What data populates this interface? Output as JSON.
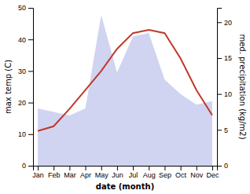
{
  "chart_data": {
    "type": "line",
    "categories": [
      "Jan",
      "Feb",
      "Mar",
      "Apr",
      "May",
      "Jun",
      "Jul",
      "Aug",
      "Sep",
      "Oct",
      "Nov",
      "Dec"
    ],
    "series": [
      {
        "type": "area",
        "axis": "y2",
        "color": "#b0b8e8",
        "values": [
          8,
          7.5,
          7,
          8,
          21,
          13,
          18,
          18.5,
          12,
          10,
          8.5,
          9
        ]
      },
      {
        "type": "line",
        "color": "#c0392b",
        "values": [
          11,
          12.5,
          18,
          24,
          30,
          37,
          42,
          43,
          42,
          34,
          24,
          16
        ]
      }
    ],
    "xlabel": "date (month)",
    "ylabel": "max temp (C)",
    "y2label": "med. precipitation (kg/m2)",
    "ylim": [
      0,
      50
    ],
    "yticks": [
      0,
      10,
      20,
      30,
      40,
      50
    ],
    "y2lim": [
      0,
      22
    ],
    "y2ticks": [
      0,
      5,
      10,
      15,
      20
    ],
    "grid": false
  }
}
